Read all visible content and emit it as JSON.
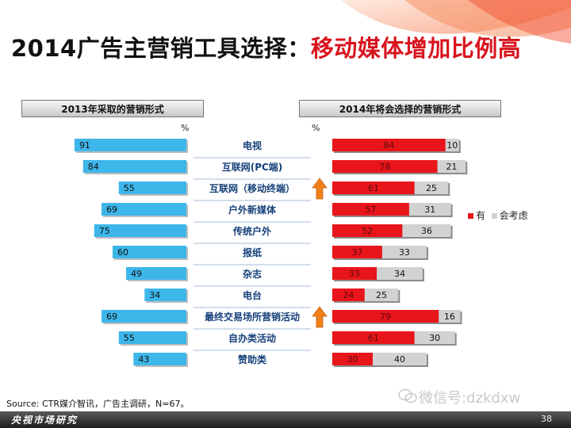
{
  "page": {
    "title_main": "2014广告主营销工具选择：",
    "title_highlight": "移动媒体增加比例高",
    "source": "Source: CTR媒介智讯，广告主调研，N=67。",
    "footer_brand": "央视市场研究",
    "page_number": "38",
    "watermark": "微信号:dzkdxw"
  },
  "colors": {
    "left_bar": "#3db6ea",
    "have": "#e8151b",
    "consider": "#d2d2d2",
    "accent": "#d8141e",
    "arrow": "#f0801a"
  },
  "chart_data": [
    {
      "type": "bar",
      "orientation": "horizontal",
      "title": "2013年采取的营销形式",
      "unit": "%",
      "categories": [
        "电视",
        "互联网(PC端)",
        "互联网（移动终端）",
        "户外新媒体",
        "传统户外",
        "报纸",
        "杂志",
        "电台",
        "最终交易场所营销活动",
        "自办类活动",
        "赞助类"
      ],
      "values": [
        91,
        84,
        55,
        69,
        75,
        60,
        49,
        34,
        69,
        55,
        43
      ],
      "xlim": [
        0,
        100
      ]
    },
    {
      "type": "bar",
      "orientation": "horizontal",
      "stacked": true,
      "title": "2014年将会选择的营销形式",
      "unit": "%",
      "categories": [
        "电视",
        "互联网(PC端)",
        "互联网（移动终端）",
        "户外新媒体",
        "传统户外",
        "报纸",
        "杂志",
        "电台",
        "最终交易场所营销活动",
        "自办类活动",
        "赞助类"
      ],
      "series": [
        {
          "name": "有",
          "values": [
            84,
            78,
            61,
            57,
            52,
            37,
            33,
            24,
            79,
            61,
            30
          ]
        },
        {
          "name": "会考虑",
          "values": [
            10,
            21,
            25,
            31,
            36,
            33,
            34,
            25,
            16,
            30,
            40
          ]
        }
      ],
      "xlim": [
        0,
        100
      ],
      "legend": "right",
      "annotations": [
        {
          "category": "互联网（移动终端）",
          "marker": "up-arrow"
        },
        {
          "category": "最终交易场所营销活动",
          "marker": "up-arrow"
        }
      ]
    }
  ]
}
